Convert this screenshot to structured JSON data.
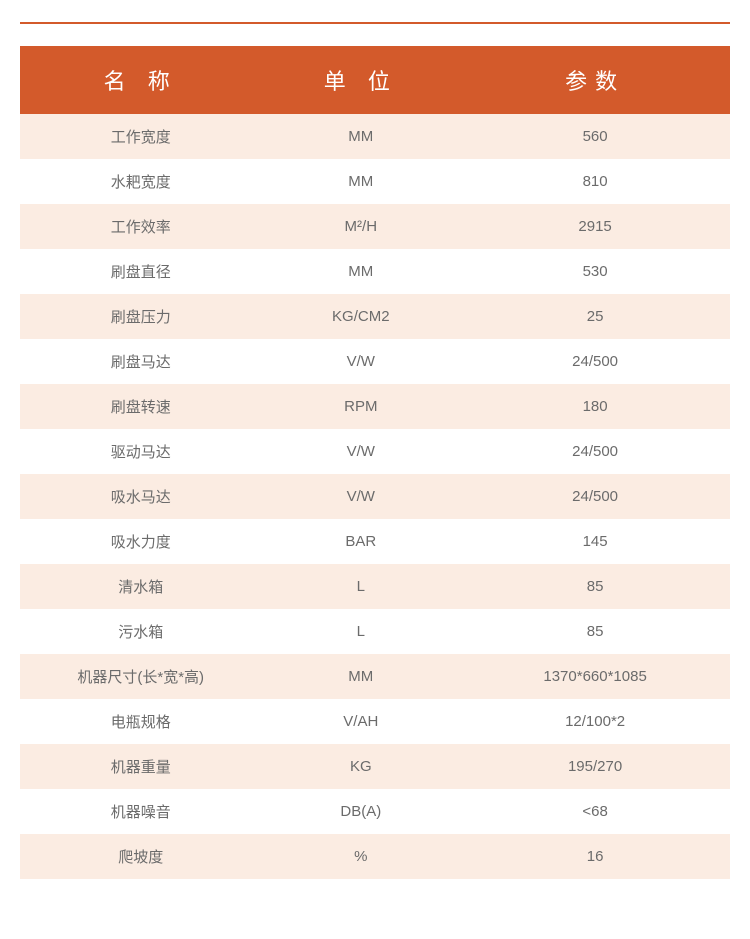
{
  "table": {
    "type": "table",
    "header_bg": "#d35a2b",
    "header_color": "#ffffff",
    "row_odd_bg": "#fbece2",
    "row_even_bg": "#ffffff",
    "cell_color": "#6b6b6b",
    "header_fontsize": 22,
    "cell_fontsize": 15,
    "columns": [
      "名 称",
      "单 位",
      "参数"
    ],
    "column_widths_pct": [
      34,
      28,
      38
    ],
    "rows": [
      [
        "工作宽度",
        "MM",
        "560"
      ],
      [
        "水耙宽度",
        "MM",
        "810"
      ],
      [
        "工作效率",
        "M²/H",
        "2915"
      ],
      [
        "刷盘直径",
        "MM",
        "530"
      ],
      [
        "刷盘压力",
        "KG/CM2",
        "25"
      ],
      [
        "刷盘马达",
        "V/W",
        "24/500"
      ],
      [
        "刷盘转速",
        "RPM",
        "180"
      ],
      [
        "驱动马达",
        "V/W",
        "24/500"
      ],
      [
        "吸水马达",
        "V/W",
        "24/500"
      ],
      [
        "吸水力度",
        "BAR",
        "145"
      ],
      [
        "清水箱",
        "L",
        "85"
      ],
      [
        "污水箱",
        "L",
        "85"
      ],
      [
        "机器尺寸(长*宽*高)",
        "MM",
        "1370*660*1085"
      ],
      [
        "电瓶规格",
        "V/AH",
        "12/100*2"
      ],
      [
        "机器重量",
        "KG",
        "195/270"
      ],
      [
        "机器噪音",
        "DB(A)",
        "<68"
      ],
      [
        "爬坡度",
        "%",
        "16"
      ]
    ]
  },
  "accent_color": "#d35a2b"
}
